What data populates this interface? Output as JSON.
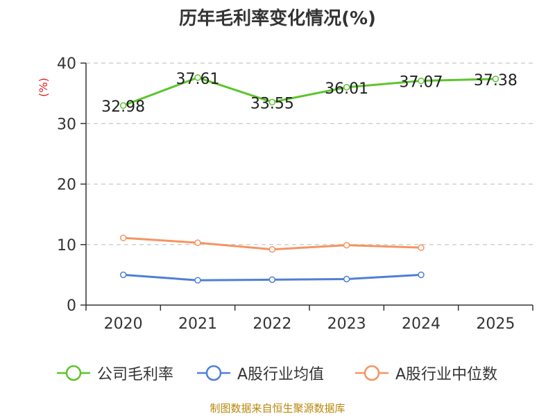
{
  "chart_data": {
    "type": "line",
    "title": "历年毛利率变化情况(%)",
    "ylabel": "(%)",
    "categories": [
      "2020",
      "2021",
      "2022",
      "2023",
      "2024",
      "2025"
    ],
    "ylim": [
      0,
      40
    ],
    "yticks": [
      0,
      10,
      20,
      30,
      40
    ],
    "grid": true,
    "legend_position": "bottom",
    "series": [
      {
        "name": "公司毛利率",
        "color": "#5cc42b",
        "values": [
          32.98,
          37.61,
          33.55,
          36.01,
          37.07,
          37.38
        ],
        "labels": [
          "32.98",
          "37.61",
          "33.55",
          "36.01",
          "37.07",
          "37.38"
        ]
      },
      {
        "name": "A股行业均值",
        "color": "#4e7fd6",
        "values": [
          5.0,
          4.1,
          4.2,
          4.3,
          5.0,
          null
        ]
      },
      {
        "name": "A股行业中位数",
        "color": "#f59462",
        "values": [
          11.1,
          10.3,
          9.2,
          9.9,
          9.5,
          null
        ]
      }
    ]
  },
  "source": "制图数据来自恒生聚源数据库"
}
